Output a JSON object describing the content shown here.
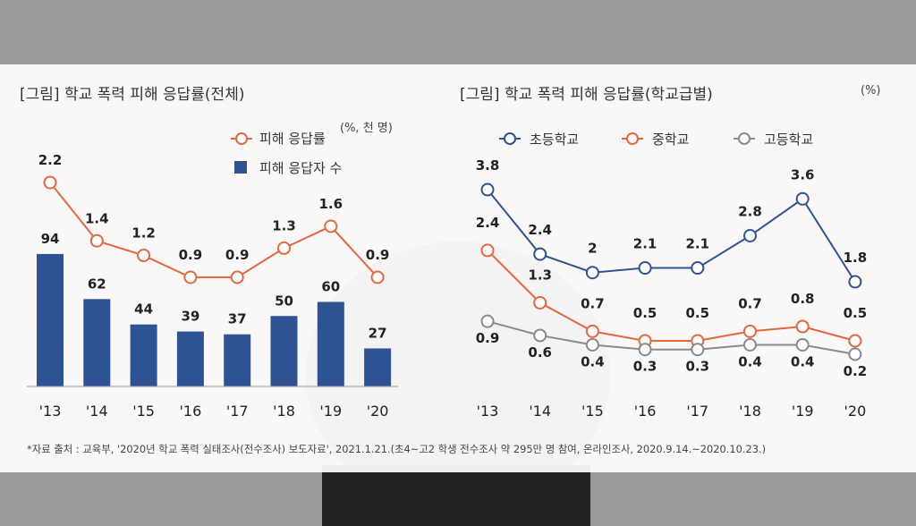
{
  "left": {
    "title": "[그림] 학교 폭력 피해 응답률(전체)",
    "unit": "(%, 천 명)",
    "legend": {
      "line": "피해 응답률",
      "bar": "피해 응답자 수"
    }
  },
  "right": {
    "title": "[그림] 학교 폭력 피해 응답률(학교급별)",
    "unit": "(%)"
  },
  "source": "*자료 출처 : 교육부, '2020년 학교 폭력 실태조사(전수조사) 보도자료', 2021.1.21.(초4~고2 학생 전수조사 약 295만 명 참여, 온라인조사, 2020.9.14.~2020.10.23.)",
  "colors": {
    "bar": "#2e5394",
    "line_total": "#e8663f",
    "elem": "#2e5394",
    "middle": "#e8663f",
    "high": "#8a8a8a"
  },
  "chart_data": [
    {
      "type": "bar",
      "categories": [
        "'13",
        "'14",
        "'15",
        "'16",
        "'17",
        "'18",
        "'19",
        "'20"
      ],
      "series": [
        {
          "name": "피해 응답률",
          "type": "line",
          "values": [
            2.2,
            1.4,
            1.2,
            0.9,
            0.9,
            1.3,
            1.6,
            0.9
          ]
        },
        {
          "name": "피해 응답자 수",
          "type": "bar",
          "values": [
            94,
            62,
            44,
            39,
            37,
            50,
            60,
            27
          ]
        }
      ],
      "title": "[그림] 학교 폭력 피해 응답률(전체)",
      "unit": "(%, 천 명)"
    },
    {
      "type": "line",
      "categories": [
        "'13",
        "'14",
        "'15",
        "'16",
        "'17",
        "'18",
        "'19",
        "'20"
      ],
      "series": [
        {
          "name": "초등학교",
          "values": [
            3.8,
            2.4,
            2,
            2.1,
            2.1,
            2.8,
            3.6,
            1.8
          ]
        },
        {
          "name": "중학교",
          "values": [
            2.4,
            1.3,
            0.7,
            0.5,
            0.5,
            0.7,
            0.8,
            0.5
          ]
        },
        {
          "name": "고등학교",
          "values": [
            0.9,
            0.6,
            0.4,
            0.3,
            0.3,
            0.4,
            0.4,
            0.2
          ]
        }
      ],
      "title": "[그림] 학교 폭력 피해 응답률(학교급별)",
      "unit": "(%)"
    }
  ]
}
